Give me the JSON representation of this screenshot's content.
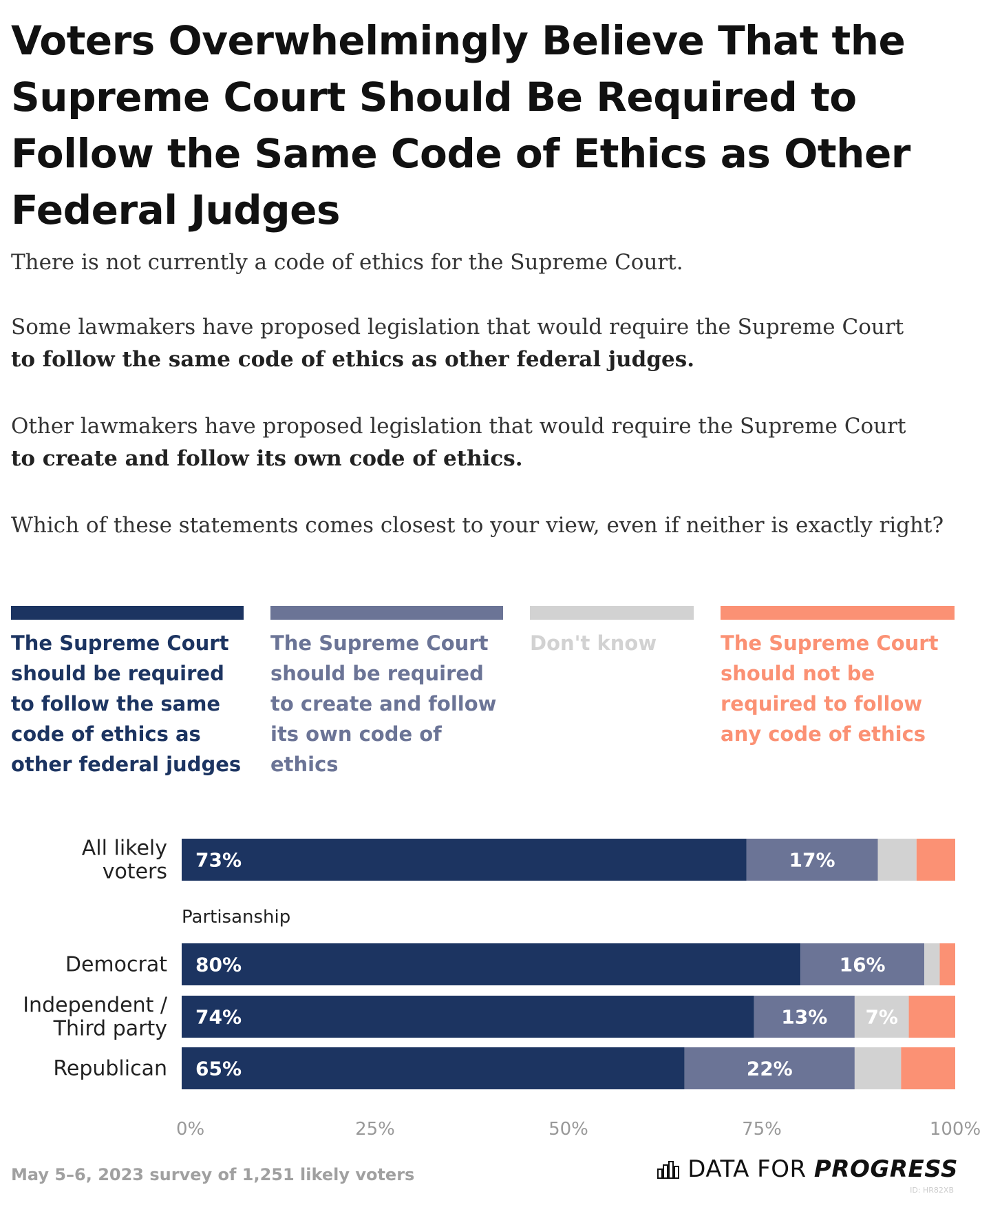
{
  "title": "Voters Overwhelmingly Believe That the Supreme Court Should Be Required to Follow the Same Code of Ethics as Other Federal Judges",
  "intro": {
    "p1": "There is not currently a code of ethics for the Supreme Court.",
    "p2_plain": "Some lawmakers have proposed legislation that would require the Supreme Court",
    "p2_bold": "to follow the same code of ethics as other federal judges.",
    "p3_plain": "Other lawmakers have proposed legislation that would require the Supreme Court",
    "p3_bold": "to create and follow its own code of ethics.",
    "p4": "Which of these statements comes closest to your view, even if neither is exactly right?"
  },
  "colors": {
    "same_code": "#1c3461",
    "own_code": "#6b7496",
    "dont_know": "#d2d2d2",
    "no_code": "#fb9174"
  },
  "legend": [
    {
      "key": "same_code",
      "label": "The Supreme Court should be required to follow the same code of ethics as other federal judges"
    },
    {
      "key": "own_code",
      "label": "The Supreme Court should be required to create and follow its own code of ethics"
    },
    {
      "key": "dont_know",
      "label": "Don't know"
    },
    {
      "key": "no_code",
      "label": "The Supreme Court should not be required to follow any code of ethics"
    }
  ],
  "chart_data": {
    "type": "bar",
    "orientation": "horizontal",
    "stacked": true,
    "xlim": [
      0,
      100
    ],
    "xticks": [
      "0%",
      "25%",
      "50%",
      "75%",
      "100%"
    ],
    "subheading": "Partisanship",
    "categories": [
      [
        "All likely",
        "voters"
      ],
      [
        "Democrat"
      ],
      [
        "Independent /",
        "Third party"
      ],
      [
        "Republican"
      ]
    ],
    "series": [
      {
        "name": "The Supreme Court should be required to follow the same code of ethics as other federal judges",
        "key": "same_code",
        "values": [
          73,
          80,
          74,
          65
        ],
        "labels": [
          "73%",
          "80%",
          "74%",
          "65%"
        ]
      },
      {
        "name": "The Supreme Court should be required to create and follow its own code of ethics",
        "key": "own_code",
        "values": [
          17,
          16,
          13,
          22
        ],
        "labels": [
          "17%",
          "16%",
          "13%",
          "22%"
        ]
      },
      {
        "name": "Don't know",
        "key": "dont_know",
        "values": [
          5,
          2,
          7,
          6
        ],
        "labels": [
          "",
          "",
          "7%",
          ""
        ]
      },
      {
        "name": "The Supreme Court should not be required to follow any code of ethics",
        "key": "no_code",
        "values": [
          5,
          2,
          6,
          7
        ],
        "labels": [
          "",
          "",
          "",
          ""
        ]
      }
    ]
  },
  "footnote": "May 5–6, 2023 survey of 1,251 likely voters",
  "brand": {
    "prefix": "DATA FOR ",
    "bold": "PROGRESS",
    "id": "ID: HR82XB"
  }
}
